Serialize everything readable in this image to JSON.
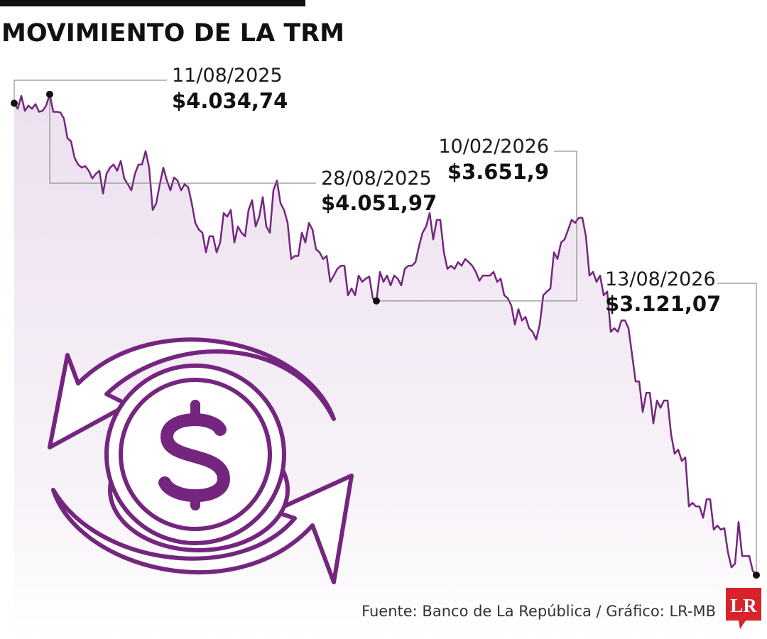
{
  "chart_data": {
    "type": "line",
    "title": "MOVIMIENTO DE LA TRM",
    "color": "#74267f",
    "ylim": [
      3110,
      4060
    ],
    "values": [
      4034.74,
      4024,
      4049,
      4020,
      4030,
      4024,
      4033,
      4018,
      4020,
      4030,
      4051.97,
      4018,
      4018,
      4017,
      4005,
      3967,
      3961,
      3929,
      3916,
      3910,
      3913,
      3904,
      3889,
      3898,
      3904,
      3860,
      3898,
      3910,
      3916,
      3904,
      3923,
      3889,
      3878,
      3866,
      3898,
      3916,
      3916,
      3942,
      3910,
      3828,
      3841,
      3878,
      3910,
      3885,
      3866,
      3891,
      3885,
      3866,
      3878,
      3872,
      3841,
      3803,
      3790,
      3784,
      3746,
      3777,
      3777,
      3746,
      3765,
      3822,
      3815,
      3828,
      3765,
      3796,
      3784,
      3777,
      3828,
      3847,
      3796,
      3815,
      3853,
      3796,
      3784,
      3866,
      3885,
      3841,
      3828,
      3803,
      3733,
      3739,
      3739,
      3784,
      3765,
      3803,
      3790,
      3752,
      3746,
      3733,
      3739,
      3689,
      3701,
      3714,
      3720,
      3720,
      3663,
      3676,
      3663,
      3701,
      3689,
      3695,
      3699,
      3657,
      3651.9,
      3708,
      3689,
      3701,
      3682,
      3701,
      3695,
      3682,
      3714,
      3720,
      3720,
      3727,
      3758,
      3784,
      3796,
      3822,
      3771,
      3809,
      3809,
      3746,
      3714,
      3720,
      3714,
      3727,
      3720,
      3733,
      3727,
      3720,
      3708,
      3691,
      3701,
      3701,
      3701,
      3708,
      3689,
      3695,
      3663,
      3657,
      3643,
      3606,
      3636,
      3614,
      3621,
      3599,
      3592,
      3577,
      3606,
      3663,
      3670,
      3676,
      3746,
      3733,
      3765,
      3771,
      3790,
      3809,
      3803,
      3813,
      3813,
      3777,
      3701,
      3708,
      3689,
      3701,
      3663,
      3670,
      3592,
      3599,
      3592,
      3614,
      3614,
      3599,
      3548,
      3496,
      3496,
      3437,
      3474,
      3474,
      3415,
      3459,
      3445,
      3459,
      3459,
      3393,
      3356,
      3364,
      3342,
      3349,
      3254,
      3261,
      3254,
      3254,
      3232,
      3268,
      3268,
      3209,
      3217,
      3209,
      3212,
      3165,
      3136,
      3143,
      3224,
      3158,
      3158,
      3158,
      3129,
      3121.07
    ],
    "annotations": [
      {
        "date": "11/08/2025",
        "value": 4034.74,
        "value_label": "$4.034,74"
      },
      {
        "date": "28/08/2025",
        "value": 4051.97,
        "value_label": "$4.051,97"
      },
      {
        "date": "10/02/2026",
        "value": 3651.9,
        "value_label": "$3.651,9"
      },
      {
        "date": "13/08/2026",
        "value": 3121.07,
        "value_label": "$3.121,07"
      }
    ]
  },
  "footer": {
    "source": "Fuente: Banco de La República / Gráfico: LR-MB",
    "logo": "LR"
  }
}
